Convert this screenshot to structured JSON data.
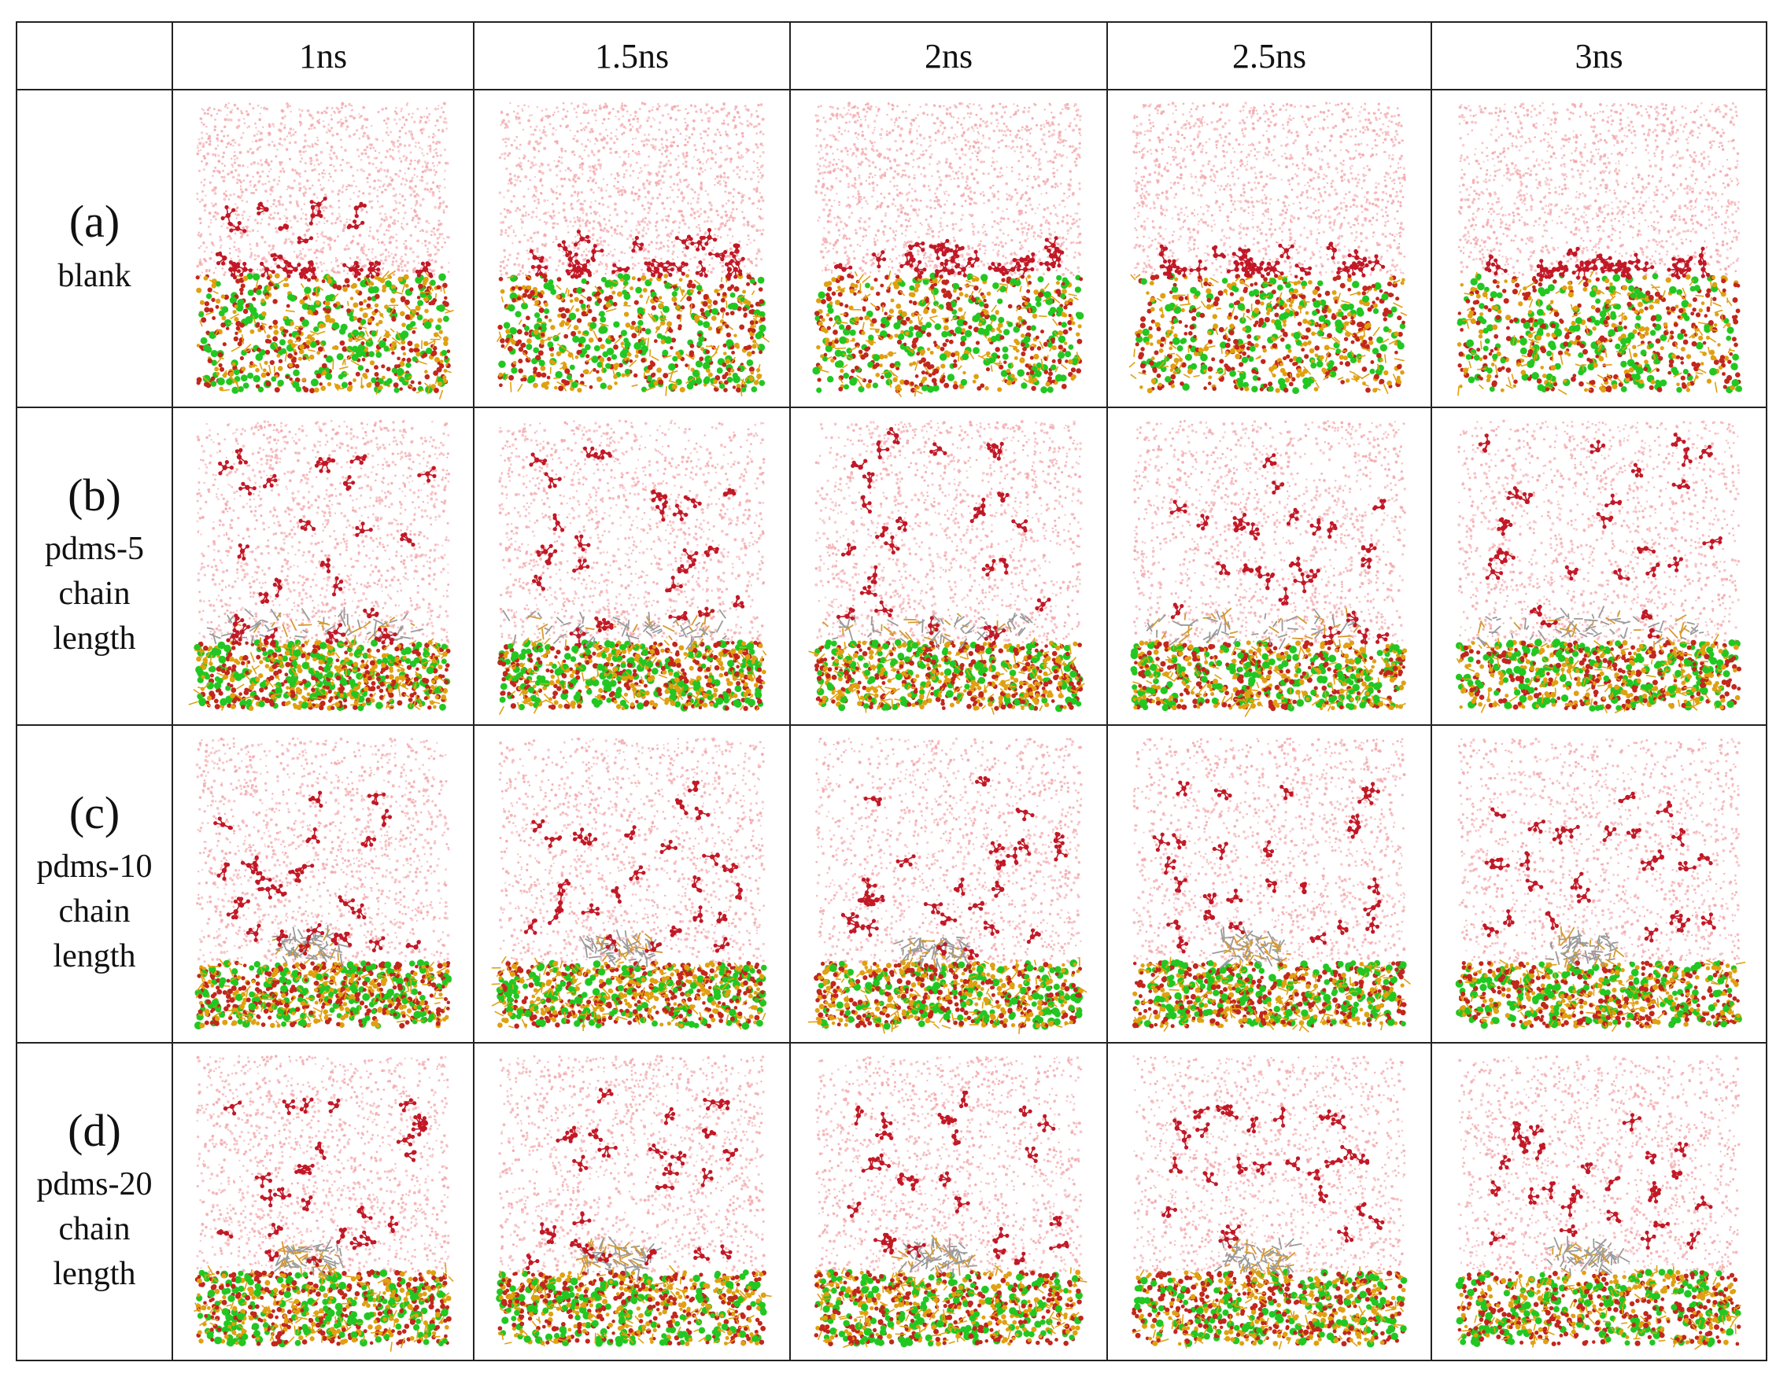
{
  "columns": [
    "1ns",
    "1.5ns",
    "2ns",
    "2.5ns",
    "3ns"
  ],
  "rows": [
    {
      "letter": "(a)",
      "label": "blank",
      "surfaceLevel": 0.6,
      "tangle": 0,
      "tangleSpread": 0,
      "moleculeCenter": 0.58,
      "moleculeSpread": [
        0.25,
        0.12,
        0.1,
        0.08,
        0.06
      ]
    },
    {
      "letter": "(b)",
      "label": "pdms-5\nchain\nlength",
      "surfaceLevel": 0.77,
      "tangle": 1,
      "tangleSpread": 0.85,
      "moleculeCenter": 0.45,
      "moleculeSpread": [
        0.38,
        0.4,
        0.4,
        0.4,
        0.4
      ]
    },
    {
      "letter": "(c)",
      "label": "pdms-10\nchain\nlength",
      "surfaceLevel": 0.78,
      "tangle": 1,
      "tangleSpread": 0.25,
      "moleculeCenter": 0.45,
      "moleculeSpread": [
        0.3,
        0.3,
        0.3,
        0.28,
        0.25
      ]
    },
    {
      "letter": "(d)",
      "label": "pdms-20\nchain\nlength",
      "surfaceLevel": 0.75,
      "tangle": 1,
      "tangleSpread": 0.25,
      "moleculeCenter": 0.42,
      "moleculeSpread": [
        0.3,
        0.3,
        0.3,
        0.25,
        0.22
      ]
    }
  ],
  "colors": {
    "water": "#f3a9ad",
    "molecule": "#c21826",
    "substrateRed": "#c2261c",
    "substrateYellow": "#e0a010",
    "substrateGreen": "#22c722",
    "polymer": "#9a9a9a",
    "polymerAccent": "#d49a30"
  }
}
